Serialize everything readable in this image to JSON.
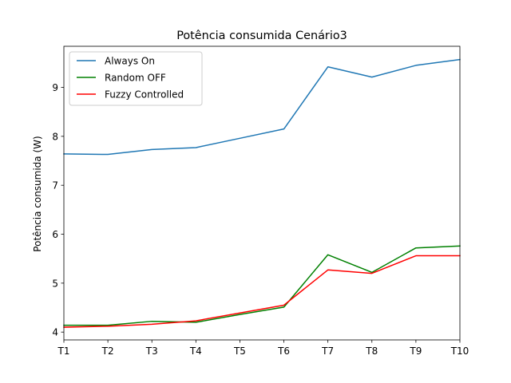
{
  "chart_data": {
    "type": "line",
    "title": "Potência consumida Cenário3",
    "xlabel": "",
    "ylabel": "Potência consumida (W)",
    "categories": [
      "T1",
      "T2",
      "T3",
      "T4",
      "T5",
      "T6",
      "T7",
      "T8",
      "T9",
      "T10"
    ],
    "yticks": [
      4,
      5,
      6,
      7,
      8,
      9
    ],
    "ylim": [
      3.84,
      9.84
    ],
    "grid": false,
    "legend_position": "top-left",
    "series": [
      {
        "name": "Always On",
        "color": "#1f77b4",
        "values": [
          7.64,
          7.63,
          7.73,
          7.77,
          7.96,
          8.15,
          9.42,
          9.21,
          9.45,
          9.57
        ]
      },
      {
        "name": "Random OFF",
        "color": "#008000",
        "values": [
          4.14,
          4.14,
          4.22,
          4.2,
          4.36,
          4.51,
          5.58,
          5.22,
          5.72,
          5.76
        ]
      },
      {
        "name": "Fuzzy Controlled",
        "color": "#ff0000",
        "values": [
          4.1,
          4.12,
          4.16,
          4.23,
          4.39,
          4.55,
          5.27,
          5.2,
          5.56,
          5.56
        ]
      }
    ]
  }
}
